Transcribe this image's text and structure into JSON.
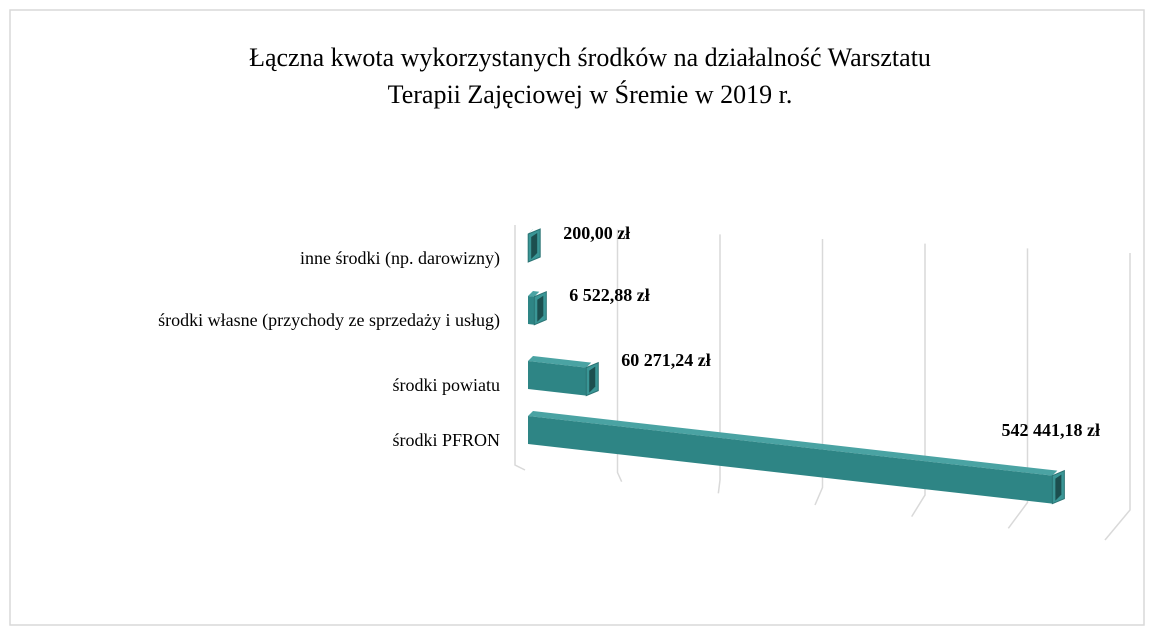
{
  "chart_data": {
    "type": "bar3d",
    "title": [
      "Łączna kwota wykorzystanych środków na działalność Warsztatu",
      "Terapii Zajęciowej w Śremie w 2019 r."
    ],
    "categories": [
      "inne środki (np. darowizny)",
      "środki własne (przychody ze sprzedaży i usług)",
      "środki  powiatu",
      "środki PFRON"
    ],
    "values": [
      200,
      6522.88,
      60271.24,
      542441.18
    ],
    "value_labels": [
      "200,00 zł",
      "6 522,88 zł",
      "60 271,24 zł",
      "542 441,18 zł"
    ],
    "color": "#2e8585",
    "xlim": [
      0,
      600000
    ],
    "xticks": [
      0,
      100000,
      200000,
      300000,
      400000,
      500000,
      600000
    ],
    "grid": true
  }
}
